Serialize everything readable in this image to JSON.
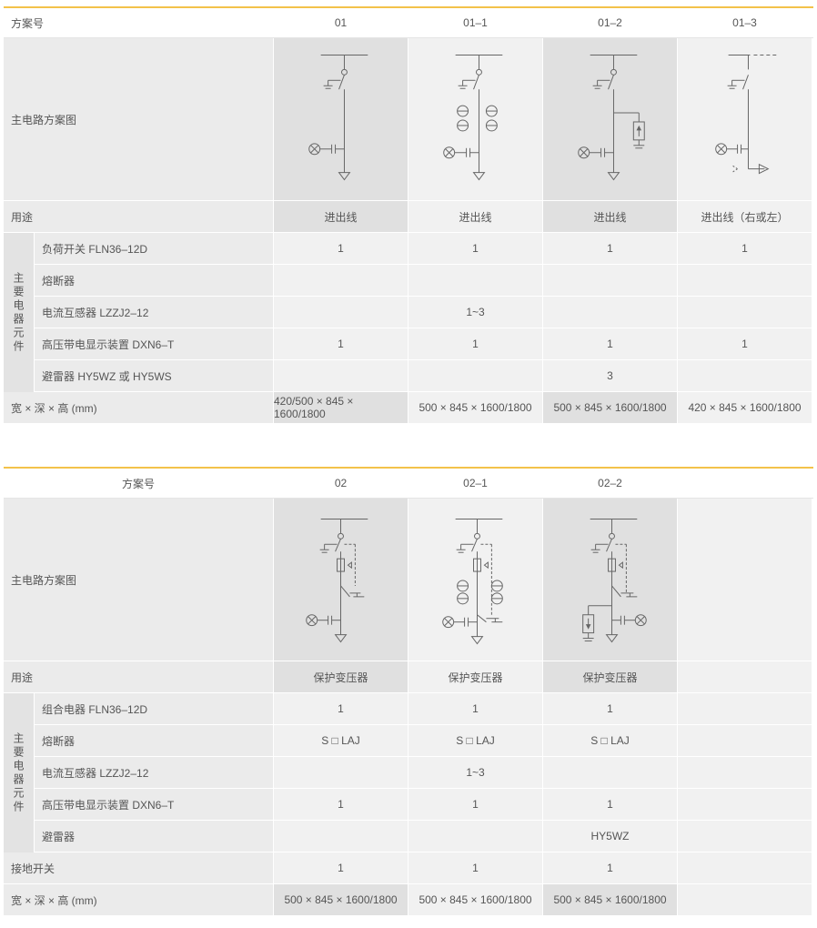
{
  "table1": {
    "header": {
      "label": "方案号",
      "cols": [
        "01",
        "01–1",
        "01–2",
        "01–3"
      ]
    },
    "diagram_label": "主电路方案图",
    "usage": {
      "label": "用途",
      "values": [
        "进出线",
        "进出线",
        "进出线",
        "进出线（右或左）"
      ]
    },
    "group_label": "主要电器元件",
    "components": [
      {
        "label": "负荷开关 FLN36–12D",
        "values": [
          "1",
          "1",
          "1",
          "1"
        ]
      },
      {
        "label": "熔断器",
        "values": [
          "",
          "",
          "",
          ""
        ]
      },
      {
        "label": "电流互感器 LZZJ2–12",
        "values": [
          "",
          "1~3",
          "",
          ""
        ]
      },
      {
        "label": "高压带电显示装置 DXN6–T",
        "values": [
          "1",
          "1",
          "1",
          "1"
        ]
      },
      {
        "label": "避雷器 HY5WZ 或 HY5WS",
        "values": [
          "",
          "",
          "3",
          ""
        ]
      }
    ],
    "dims": {
      "label": "宽 × 深 × 高 (mm)",
      "values": [
        "420/500 × 845 × 1600/1800",
        "500 × 845 × 1600/1800",
        "500 × 845 × 1600/1800",
        "420 × 845 × 1600/1800"
      ]
    }
  },
  "table2": {
    "header": {
      "label": "方案号",
      "cols": [
        "02",
        "02–1",
        "02–2",
        ""
      ]
    },
    "diagram_label": "主电路方案图",
    "usage": {
      "label": "用途",
      "values": [
        "保护变压器",
        "保护变压器",
        "保护变压器",
        ""
      ]
    },
    "group_label": "主要电器元件",
    "components": [
      {
        "label": "组合电器 FLN36–12D",
        "values": [
          "1",
          "1",
          "1",
          ""
        ]
      },
      {
        "label": "熔断器",
        "values": [
          "S □ LAJ",
          "S □ LAJ",
          "S □ LAJ",
          ""
        ]
      },
      {
        "label": "电流互感器 LZZJ2–12",
        "values": [
          "",
          "1~3",
          "",
          ""
        ]
      },
      {
        "label": "高压带电显示装置 DXN6–T",
        "values": [
          "1",
          "1",
          "1",
          ""
        ]
      },
      {
        "label": "避雷器",
        "values": [
          "",
          "",
          "HY5WZ",
          ""
        ]
      }
    ],
    "earth": {
      "label": "接地开关",
      "values": [
        "1",
        "1",
        "1",
        ""
      ]
    },
    "dims": {
      "label": "宽 × 深 × 高 (mm)",
      "values": [
        "500 × 845 × 1600/1800",
        "500 × 845 × 1600/1800",
        "500 × 845 × 1600/1800",
        ""
      ]
    }
  }
}
